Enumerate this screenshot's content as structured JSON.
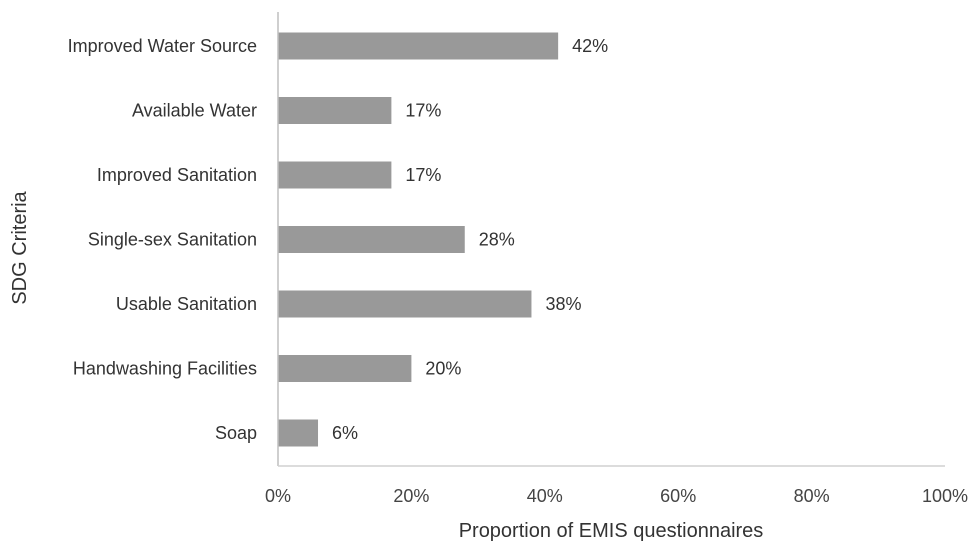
{
  "chart_data": {
    "type": "bar",
    "orientation": "horizontal",
    "categories": [
      "Improved Water Source",
      "Available Water",
      "Improved Sanitation",
      "Single-sex Sanitation",
      "Usable Sanitation",
      "Handwashing Facilities",
      "Soap"
    ],
    "values": [
      42,
      17,
      17,
      28,
      38,
      20,
      6
    ],
    "data_labels": [
      "42%",
      "17%",
      "17%",
      "28%",
      "38%",
      "20%",
      "6%"
    ],
    "xlabel": "Proportion of EMIS questionnaires",
    "ylabel": "SDG Criteria",
    "xlim": [
      0,
      100
    ],
    "x_ticks": [
      0,
      20,
      40,
      60,
      80,
      100
    ],
    "x_tick_labels": [
      "0%",
      "20%",
      "40%",
      "60%",
      "80%",
      "100%"
    ],
    "bar_color": "#999999",
    "grid": false,
    "legend": "none"
  }
}
